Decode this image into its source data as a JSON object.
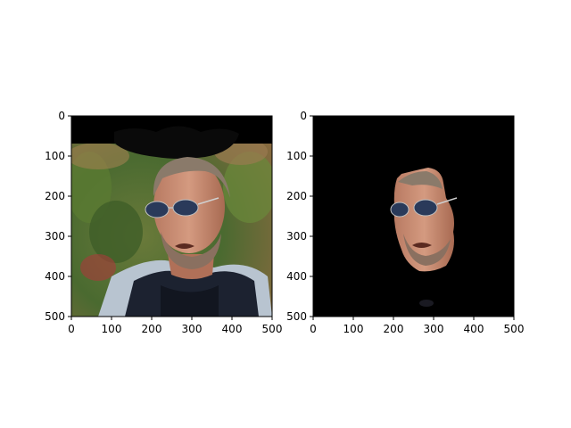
{
  "panels": [
    {
      "id": "original",
      "image_description_icon": "portrait-photo",
      "xticks": [
        "0",
        "100",
        "200",
        "300",
        "400",
        "500"
      ],
      "yticks": [
        "0",
        "100",
        "200",
        "300",
        "400",
        "500"
      ],
      "xlim": [
        0,
        500
      ],
      "ylim": [
        500,
        0
      ]
    },
    {
      "id": "masked",
      "image_description_icon": "face-segmentation",
      "xticks": [
        "0",
        "100",
        "200",
        "300",
        "400",
        "500"
      ],
      "yticks": [
        "0",
        "100",
        "200",
        "300",
        "400",
        "500"
      ],
      "xlim": [
        0,
        500
      ],
      "ylim": [
        500,
        0
      ]
    }
  ],
  "colors": {
    "background": "#ffffff",
    "mask_background": "#000000",
    "skin": "#c98a73",
    "hair": "#8a7a6a",
    "foliage": "#4a6a30",
    "jacket": "#1c2230",
    "shirt": "#b8c4d0"
  }
}
